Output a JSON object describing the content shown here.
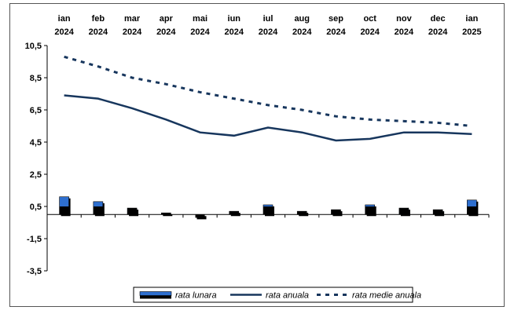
{
  "chart_data": {
    "type": "bar",
    "title": "",
    "xlabel": "",
    "ylabel": "",
    "categories": [
      [
        "ian",
        "2024"
      ],
      [
        "feb",
        "2024"
      ],
      [
        "mar",
        "2024"
      ],
      [
        "apr",
        "2024"
      ],
      [
        "mai",
        "2024"
      ],
      [
        "iun",
        "2024"
      ],
      [
        "iul",
        "2024"
      ],
      [
        "aug",
        "2024"
      ],
      [
        "sep",
        "2024"
      ],
      [
        "oct",
        "2024"
      ],
      [
        "nov",
        "2024"
      ],
      [
        "dec",
        "2024"
      ],
      [
        "ian",
        "2025"
      ]
    ],
    "y_ticks": [
      "10,5",
      "8,5",
      "6,5",
      "4,5",
      "2,5",
      "0,5",
      "-1,5",
      "-3,5"
    ],
    "ylim": [
      -3.5,
      10.5
    ],
    "grid": false,
    "legend_position": "bottom",
    "series": [
      {
        "name": "rata lunara",
        "type": "bar",
        "values": [
          1.1,
          0.8,
          0.4,
          0.1,
          -0.2,
          0.2,
          0.6,
          0.2,
          0.3,
          0.6,
          0.4,
          0.3,
          0.9
        ]
      },
      {
        "name": "rata anuala",
        "type": "line",
        "values": [
          7.4,
          7.2,
          6.6,
          5.9,
          5.1,
          4.9,
          5.4,
          5.1,
          4.6,
          4.7,
          5.1,
          5.1,
          5.0
        ]
      },
      {
        "name": "rata medie anuala",
        "type": "dashed-line",
        "values": [
          9.8,
          9.2,
          8.5,
          8.1,
          7.6,
          7.2,
          6.8,
          6.5,
          6.1,
          5.9,
          5.8,
          5.7,
          5.5
        ]
      }
    ],
    "colors": {
      "bar_top": "#2e6fcf",
      "bar_base": "#000000",
      "line": "#17365d",
      "axis": "#000000"
    }
  }
}
